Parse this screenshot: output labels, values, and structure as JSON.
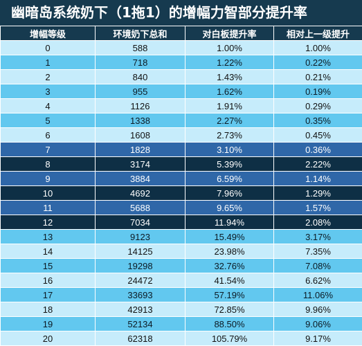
{
  "title": "幽暗岛系统奶下（1拖1）的增幅力智部分提升率",
  "headers": [
    "增幅等级",
    "环境奶下总和",
    "对白板提升率",
    "相对上一级提升"
  ],
  "colors": {
    "header_bg": "#163a4f",
    "light": "#c6ecfb",
    "mid": "#62c8ef",
    "deep": "#2f67a8",
    "dark": "#0e2f45"
  },
  "rows": [
    {
      "level": "0",
      "total": "588",
      "vs_base": "1.00%",
      "vs_prev": "1.00%",
      "tone": "light"
    },
    {
      "level": "1",
      "total": "718",
      "vs_base": "1.22%",
      "vs_prev": "0.22%",
      "tone": "mid"
    },
    {
      "level": "2",
      "total": "840",
      "vs_base": "1.43%",
      "vs_prev": "0.21%",
      "tone": "light"
    },
    {
      "level": "3",
      "total": "955",
      "vs_base": "1.62%",
      "vs_prev": "0.19%",
      "tone": "mid"
    },
    {
      "level": "4",
      "total": "1126",
      "vs_base": "1.91%",
      "vs_prev": "0.29%",
      "tone": "light"
    },
    {
      "level": "5",
      "total": "1338",
      "vs_base": "2.27%",
      "vs_prev": "0.35%",
      "tone": "mid"
    },
    {
      "level": "6",
      "total": "1608",
      "vs_base": "2.73%",
      "vs_prev": "0.45%",
      "tone": "light"
    },
    {
      "level": "7",
      "total": "1828",
      "vs_base": "3.10%",
      "vs_prev": "0.36%",
      "tone": "deep"
    },
    {
      "level": "8",
      "total": "3174",
      "vs_base": "5.39%",
      "vs_prev": "2.22%",
      "tone": "dark"
    },
    {
      "level": "9",
      "total": "3884",
      "vs_base": "6.59%",
      "vs_prev": "1.14%",
      "tone": "deep"
    },
    {
      "level": "10",
      "total": "4692",
      "vs_base": "7.96%",
      "vs_prev": "1.29%",
      "tone": "dark"
    },
    {
      "level": "11",
      "total": "5688",
      "vs_base": "9.65%",
      "vs_prev": "1.57%",
      "tone": "deep"
    },
    {
      "level": "12",
      "total": "7034",
      "vs_base": "11.94%",
      "vs_prev": "2.08%",
      "tone": "dark"
    },
    {
      "level": "13",
      "total": "9123",
      "vs_base": "15.49%",
      "vs_prev": "3.17%",
      "tone": "mid"
    },
    {
      "level": "14",
      "total": "14125",
      "vs_base": "23.98%",
      "vs_prev": "7.35%",
      "tone": "light"
    },
    {
      "level": "15",
      "total": "19298",
      "vs_base": "32.76%",
      "vs_prev": "7.08%",
      "tone": "mid"
    },
    {
      "level": "16",
      "total": "24472",
      "vs_base": "41.54%",
      "vs_prev": "6.62%",
      "tone": "light"
    },
    {
      "level": "17",
      "total": "33693",
      "vs_base": "57.19%",
      "vs_prev": "11.06%",
      "tone": "mid"
    },
    {
      "level": "18",
      "total": "42913",
      "vs_base": "72.85%",
      "vs_prev": "9.96%",
      "tone": "light"
    },
    {
      "level": "19",
      "total": "52134",
      "vs_base": "88.50%",
      "vs_prev": "9.06%",
      "tone": "mid"
    },
    {
      "level": "20",
      "total": "62318",
      "vs_base": "105.79%",
      "vs_prev": "9.17%",
      "tone": "light"
    }
  ]
}
